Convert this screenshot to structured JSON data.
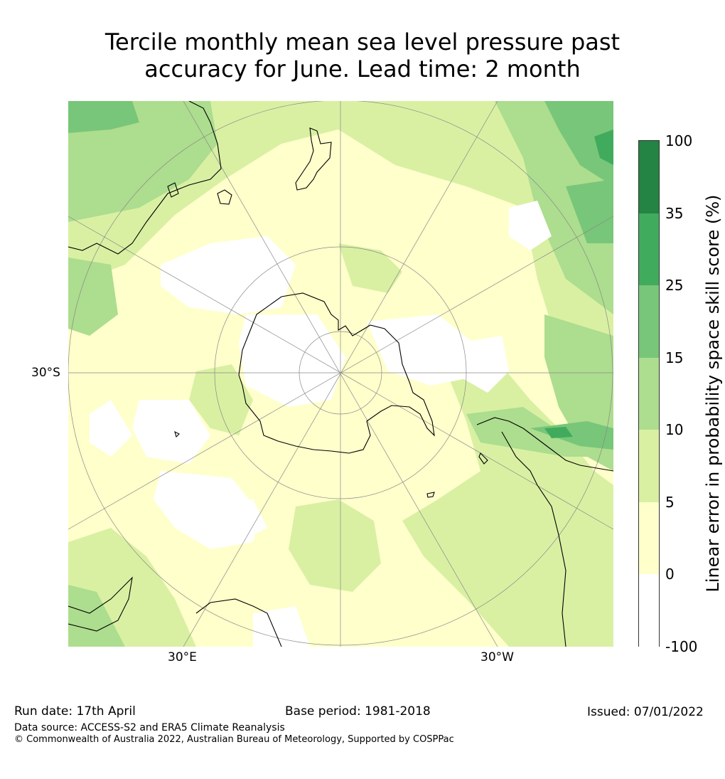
{
  "title_line1": "Tercile monthly mean sea level pressure past",
  "title_line2": "accuracy for June. Lead time: 2 month",
  "map": {
    "projection": "south-polar-stereographic",
    "lat_label": "30°S",
    "lon_labels": [
      "30°E",
      "30°W"
    ],
    "ocean_color": "#ffffcc",
    "coastline_color": "#000000",
    "graticule_color": "#888888"
  },
  "colorbar": {
    "label": "Linear error in probability space skill score (%)",
    "ticks": [
      "100",
      "35",
      "25",
      "15",
      "10",
      "5",
      "0",
      "-100"
    ],
    "bins": [
      {
        "from": "-100",
        "to": "0",
        "color": "#ffffff"
      },
      {
        "from": "0",
        "to": "5",
        "color": "#ffffcc"
      },
      {
        "from": "5",
        "to": "10",
        "color": "#d9f0a3"
      },
      {
        "from": "10",
        "to": "15",
        "color": "#addd8e"
      },
      {
        "from": "15",
        "to": "25",
        "color": "#78c679"
      },
      {
        "from": "25",
        "to": "35",
        "color": "#41ab5d"
      },
      {
        "from": "35",
        "to": "100",
        "color": "#238443"
      }
    ]
  },
  "footer": {
    "run_date": "Run date: 17th April",
    "base_period": "Base period: 1981-2018",
    "issued": "Issued: 07/01/2022",
    "data_source": "Data source: ACCESS-S2 and ERA5 Climate Reanalysis",
    "copyright": "© Commonwealth of Australia 2022, Australian Bureau of Meteorology, Supported by COSPPac"
  }
}
